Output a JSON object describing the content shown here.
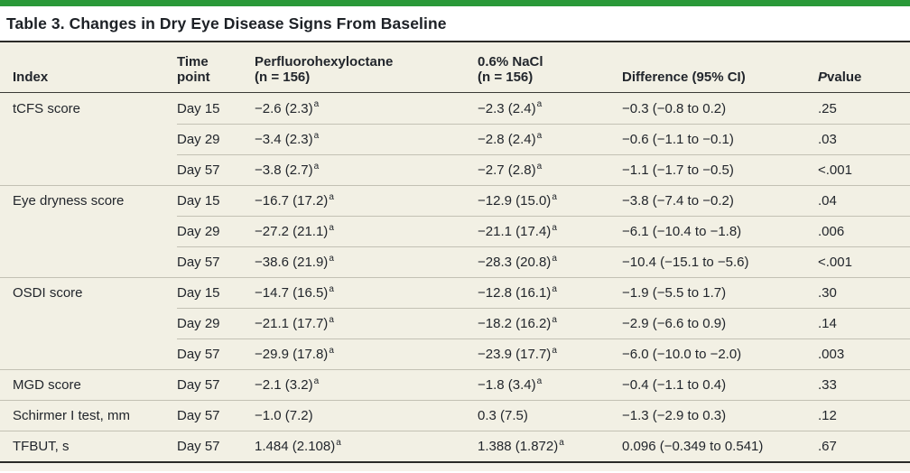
{
  "colors": {
    "accent_green": "#2a9939",
    "table_background": "#f2f0e4",
    "rule_dark": "#2b2b28",
    "row_divider": "#c3c1b4",
    "text": "#22262c"
  },
  "title": "Table 3. Changes in Dry Eye Disease Signs From Baseline",
  "table": {
    "header": {
      "index": "Index",
      "time_point": "Time\npoint",
      "drug": "Perfluorohexyloctane\n(n = 156)",
      "nacl": "0.6% NaCl\n(n = 156)",
      "difference": "Difference (95% CI)",
      "p_italic": "P",
      "p_rest": " value"
    },
    "rows": [
      {
        "index": "tCFS score",
        "time": "Day 15",
        "drug": "−2.6 (2.3)",
        "drug_sup": "a",
        "nacl": "−2.3 (2.4)",
        "nacl_sup": "a",
        "diff": "−0.3 (−0.8 to 0.2)",
        "p": ".25",
        "group_start": true
      },
      {
        "index": "",
        "time": "Day 29",
        "drug": "−3.4 (2.3)",
        "drug_sup": "a",
        "nacl": "−2.8 (2.4)",
        "nacl_sup": "a",
        "diff": "−0.6 (−1.1 to −0.1)",
        "p": ".03",
        "group_start": false
      },
      {
        "index": "",
        "time": "Day 57",
        "drug": "−3.8 (2.7)",
        "drug_sup": "a",
        "nacl": "−2.7 (2.8)",
        "nacl_sup": "a",
        "diff": "−1.1 (−1.7 to −0.5)",
        "p": "<.001",
        "group_start": false
      },
      {
        "index": "Eye dryness score",
        "time": "Day 15",
        "drug": "−16.7 (17.2)",
        "drug_sup": "a",
        "nacl": "−12.9 (15.0)",
        "nacl_sup": "a",
        "diff": "−3.8 (−7.4 to −0.2)",
        "p": ".04",
        "group_start": true
      },
      {
        "index": "",
        "time": "Day 29",
        "drug": "−27.2 (21.1)",
        "drug_sup": "a",
        "nacl": "−21.1 (17.4)",
        "nacl_sup": "a",
        "diff": "−6.1 (−10.4 to −1.8)",
        "p": ".006",
        "group_start": false
      },
      {
        "index": "",
        "time": "Day 57",
        "drug": "−38.6 (21.9)",
        "drug_sup": "a",
        "nacl": "−28.3 (20.8)",
        "nacl_sup": "a",
        "diff": "−10.4 (−15.1 to −5.6)",
        "p": "<.001",
        "group_start": false
      },
      {
        "index": "OSDI score",
        "time": "Day 15",
        "drug": "−14.7 (16.5)",
        "drug_sup": "a",
        "nacl": "−12.8 (16.1)",
        "nacl_sup": "a",
        "diff": "−1.9 (−5.5 to 1.7)",
        "p": ".30",
        "group_start": true
      },
      {
        "index": "",
        "time": "Day 29",
        "drug": "−21.1 (17.7)",
        "drug_sup": "a",
        "nacl": "−18.2 (16.2)",
        "nacl_sup": "a",
        "diff": "−2.9 (−6.6 to 0.9)",
        "p": ".14",
        "group_start": false
      },
      {
        "index": "",
        "time": "Day 57",
        "drug": "−29.9 (17.8)",
        "drug_sup": "a",
        "nacl": "−23.9 (17.7)",
        "nacl_sup": "a",
        "diff": "−6.0 (−10.0 to −2.0)",
        "p": ".003",
        "group_start": false
      },
      {
        "index": "MGD score",
        "time": "Day 57",
        "drug": "−2.1 (3.2)",
        "drug_sup": "a",
        "nacl": "−1.8 (3.4)",
        "nacl_sup": "a",
        "diff": "−0.4 (−1.1 to 0.4)",
        "p": ".33",
        "group_start": true
      },
      {
        "index": "Schirmer I test, mm",
        "time": "Day 57",
        "drug": "−1.0 (7.2)",
        "drug_sup": "",
        "nacl": "0.3 (7.5)",
        "nacl_sup": "",
        "diff": "−1.3 (−2.9 to 0.3)",
        "p": ".12",
        "group_start": true
      },
      {
        "index": "TFBUT, s",
        "time": "Day 57",
        "drug": "1.484 (2.108)",
        "drug_sup": "a",
        "nacl": "1.388 (1.872)",
        "nacl_sup": "a",
        "diff": "0.096 (−0.349 to 0.541)",
        "p": ".67",
        "group_start": true
      }
    ]
  }
}
